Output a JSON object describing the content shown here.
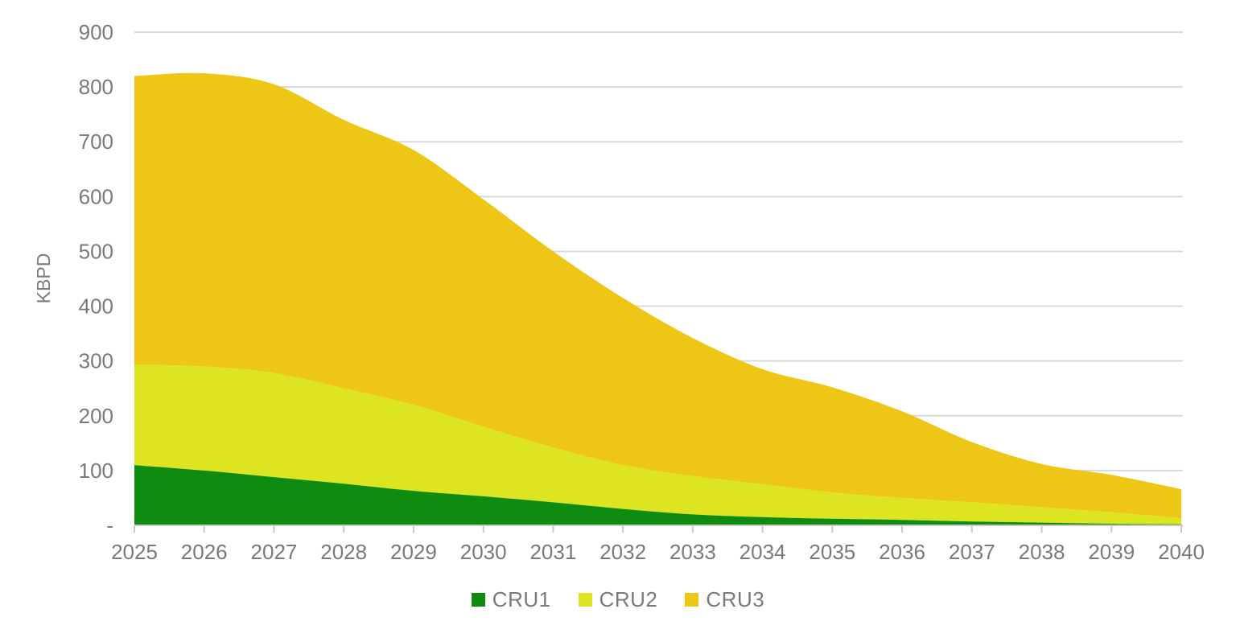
{
  "chart_data": {
    "type": "area",
    "stacked": true,
    "title": "",
    "xlabel": "",
    "ylabel": "KBPD",
    "categories": [
      "2025",
      "2026",
      "2027",
      "2028",
      "2029",
      "2030",
      "2031",
      "2032",
      "2033",
      "2034",
      "2035",
      "2036",
      "2037",
      "2038",
      "2039",
      "2040"
    ],
    "series": [
      {
        "name": "CRU1",
        "color": "#0f8c0f",
        "values": [
          110,
          100,
          88,
          76,
          63,
          53,
          42,
          30,
          20,
          15,
          12,
          10,
          7,
          5,
          3,
          2
        ]
      },
      {
        "name": "CRU2",
        "color": "#dde420",
        "values": [
          183,
          190,
          190,
          174,
          157,
          127,
          100,
          80,
          70,
          60,
          48,
          40,
          35,
          28,
          21,
          11
        ]
      },
      {
        "name": "CRU3",
        "color": "#eec616",
        "values": [
          527,
          535,
          527,
          490,
          465,
          415,
          358,
          305,
          252,
          210,
          192,
          158,
          110,
          79,
          68,
          53
        ]
      }
    ],
    "stacked_totals": [
      820,
      825,
      805,
      740,
      685,
      595,
      500,
      415,
      342,
      285,
      252,
      208,
      152,
      112,
      92,
      66
    ],
    "ylim": [
      0,
      900
    ],
    "ytick_step": 100,
    "ytick_labels": [
      "-",
      "100",
      "200",
      "300",
      "400",
      "500",
      "600",
      "700",
      "800",
      "900"
    ],
    "grid": true,
    "legend_position": "bottom",
    "colors": {
      "grid": "#d9d9d9",
      "axis": "#c9c9c9",
      "text": "#7a7a7a",
      "background": "#ffffff"
    }
  }
}
